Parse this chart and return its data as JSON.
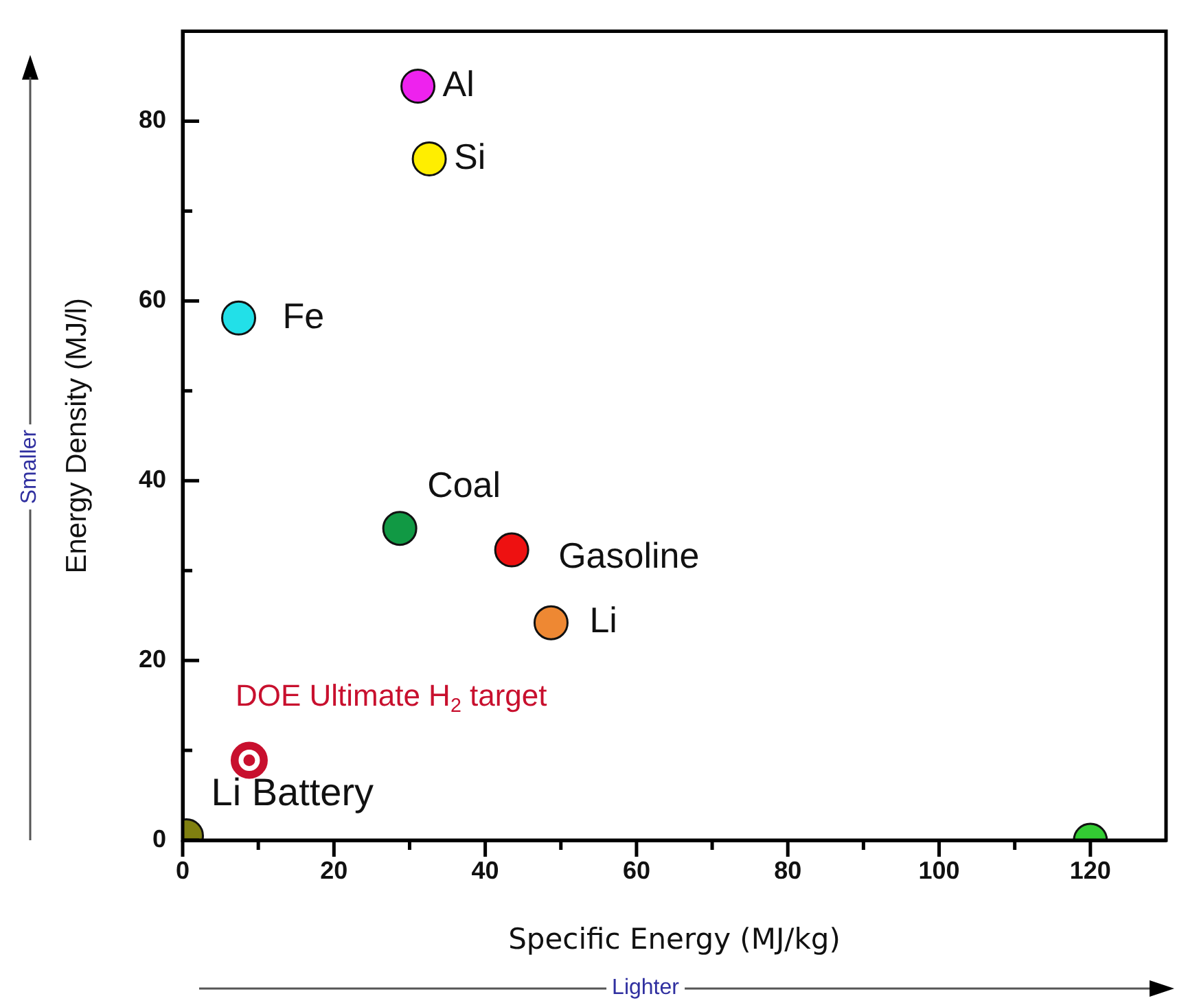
{
  "chart_data": {
    "type": "scatter",
    "xlabel": "Specific Energy (MJ/kg)",
    "ylabel": "Energy Density (MJ/l)",
    "xlim": [
      0,
      130
    ],
    "ylim": [
      0,
      90
    ],
    "xticks": [
      0,
      {
        "value": 10,
        "label": null
      },
      20,
      {
        "value": 30,
        "label": null
      },
      40,
      {
        "value": 50,
        "label": null
      },
      60,
      {
        "value": 70,
        "label": null
      },
      80,
      {
        "value": 90,
        "label": null
      },
      100,
      {
        "value": 110,
        "label": null
      },
      120
    ],
    "yticks": [
      0,
      {
        "value": 10,
        "label": null
      },
      20,
      {
        "value": 30,
        "label": null
      },
      40,
      {
        "value": 50,
        "label": null
      },
      60,
      {
        "value": 70,
        "label": null
      },
      80
    ],
    "grid": false,
    "legend": false,
    "marker": "circle",
    "series": [
      {
        "name": "Al",
        "color": "#ee22ee",
        "x": [
          31.1
        ],
        "values": [
          83.9
        ]
      },
      {
        "name": "Si",
        "color": "#ffee00",
        "x": [
          32.6
        ],
        "values": [
          75.8
        ]
      },
      {
        "name": "Fe",
        "color": "#22e0e8",
        "x": [
          7.4
        ],
        "values": [
          58.1
        ]
      },
      {
        "name": "Coal",
        "color": "#119944",
        "x": [
          28.7
        ],
        "values": [
          34.7
        ]
      },
      {
        "name": "Gasoline",
        "color": "#ee1111",
        "x": [
          43.5
        ],
        "values": [
          32.3
        ]
      },
      {
        "name": "Li",
        "color": "#ee8833",
        "x": [
          48.7
        ],
        "values": [
          24.2
        ]
      },
      {
        "name": "DOE Ultimate H$_{2}$ target",
        "color": "#c8102e",
        "x": [
          8.8
        ],
        "values": [
          8.9
        ]
      },
      {
        "name": "Li Battery",
        "color": "#808010",
        "x": [
          0.5
        ],
        "values": [
          0.5
        ]
      },
      {
        "color": "#33cc33",
        "x": [
          120
        ],
        "values": [
          0
        ]
      }
    ],
    "annotations": [
      "Smaller",
      "Lighter"
    ]
  }
}
